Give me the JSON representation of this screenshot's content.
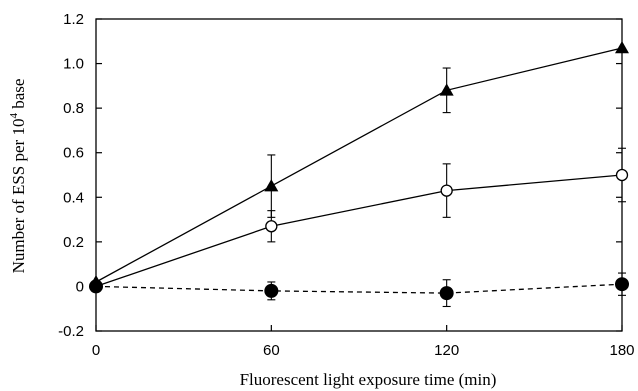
{
  "chart_data": {
    "type": "line",
    "xlabel": "Fluorescent light exposure time (min)",
    "ylabel": {
      "before": "Number of ESS per 10",
      "sup": "4",
      "after": " base"
    },
    "x": [
      0,
      60,
      120,
      180
    ],
    "xlim": [
      0,
      180
    ],
    "ylim": [
      -0.2,
      1.2
    ],
    "x_ticks": [
      0,
      60,
      120,
      180
    ],
    "y_ticks": [
      -0.2,
      0,
      0.2,
      0.4,
      0.6,
      0.8,
      1.0,
      1.2
    ],
    "y_tick_labels": [
      "-0.2",
      "0",
      "0.2",
      "0.4",
      "0.6",
      "0.8",
      "1.0",
      "1.2"
    ],
    "grid": false,
    "legend": "none",
    "series": [
      {
        "marker": "triangle-filled",
        "line_style": "solid",
        "values": [
          0.02,
          0.45,
          0.88,
          1.07
        ],
        "error": [
          0.0,
          0.14,
          0.1,
          0.0
        ]
      },
      {
        "marker": "circle-open",
        "line_style": "solid",
        "values": [
          0.0,
          0.27,
          0.43,
          0.5
        ],
        "error": [
          0.0,
          0.07,
          0.12,
          0.12
        ]
      },
      {
        "marker": "circle-filled",
        "line_style": "dashed",
        "values": [
          0.0,
          -0.02,
          -0.03,
          0.01
        ],
        "error": [
          0.0,
          0.04,
          0.06,
          0.05
        ]
      }
    ]
  }
}
